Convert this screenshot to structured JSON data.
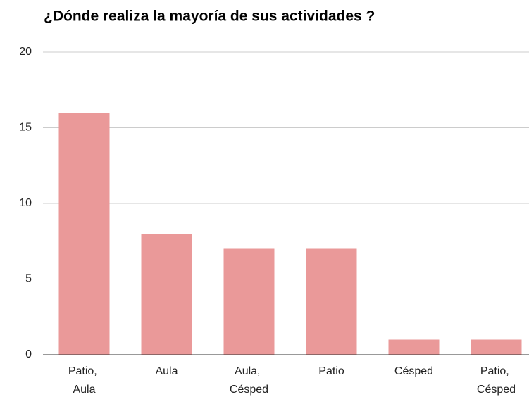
{
  "chart_data": {
    "type": "bar",
    "title": "¿Dónde realiza la mayoría de sus actividades ?",
    "categories": [
      "Patio, Aula",
      "Aula",
      "Aula, Césped",
      "Patio",
      "Césped",
      "Patio, Césped"
    ],
    "values": [
      16,
      8,
      7,
      7,
      1,
      1
    ],
    "color": "#ea9999",
    "ylim": [
      0,
      20
    ],
    "yticks": [
      0,
      5,
      10,
      15,
      20
    ],
    "grid": true
  }
}
